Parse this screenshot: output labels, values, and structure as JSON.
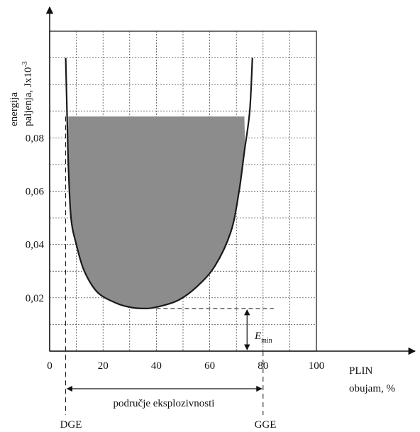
{
  "chart_data": {
    "type": "line",
    "title": "",
    "ylabel_lines": [
      "energija",
      "paljenja, Jx10",
      "-3"
    ],
    "xlabel_lines": [
      "PLIN",
      "obujam, %"
    ],
    "x_ticks": [
      {
        "value": 0,
        "label": "0"
      },
      {
        "value": 20,
        "label": "20"
      },
      {
        "value": 40,
        "label": "40"
      },
      {
        "value": 60,
        "label": "60"
      },
      {
        "value": 80,
        "label": "80"
      },
      {
        "value": 100,
        "label": "100"
      }
    ],
    "y_ticks": [
      {
        "value": 0.02,
        "label": "0,02"
      },
      {
        "value": 0.04,
        "label": "0,04"
      },
      {
        "value": 0.06,
        "label": "0,06"
      },
      {
        "value": 0.08,
        "label": "0,08"
      }
    ],
    "xlim": [
      0,
      100
    ],
    "ylim": [
      0,
      0.12
    ],
    "grid": true,
    "series": [
      {
        "values_xy": [
          [
            6,
            0.11
          ],
          [
            6.5,
            0.09
          ],
          [
            7,
            0.07
          ],
          [
            8,
            0.05
          ],
          [
            10,
            0.04
          ],
          [
            13,
            0.03
          ],
          [
            18,
            0.022
          ],
          [
            25,
            0.018
          ],
          [
            30,
            0.0165
          ],
          [
            35,
            0.016
          ],
          [
            40,
            0.0165
          ],
          [
            48,
            0.019
          ],
          [
            55,
            0.024
          ],
          [
            62,
            0.032
          ],
          [
            68,
            0.045
          ],
          [
            71,
            0.06
          ],
          [
            73,
            0.075
          ],
          [
            75,
            0.09
          ],
          [
            76,
            0.11
          ]
        ],
        "color": "#1a1a1a"
      }
    ],
    "shaded_region": {
      "y_top": 0.088,
      "fill": "#8c8c8c"
    },
    "min_energy": {
      "value": 0.016,
      "label_main": "E",
      "label_sub": "min",
      "marker_x": 74
    },
    "explosive_range": {
      "x_start": 6,
      "x_end": 80,
      "label": "područje eksplozivnosti"
    },
    "limit_labels": {
      "lower": "DGE",
      "upper": "GGE"
    }
  }
}
